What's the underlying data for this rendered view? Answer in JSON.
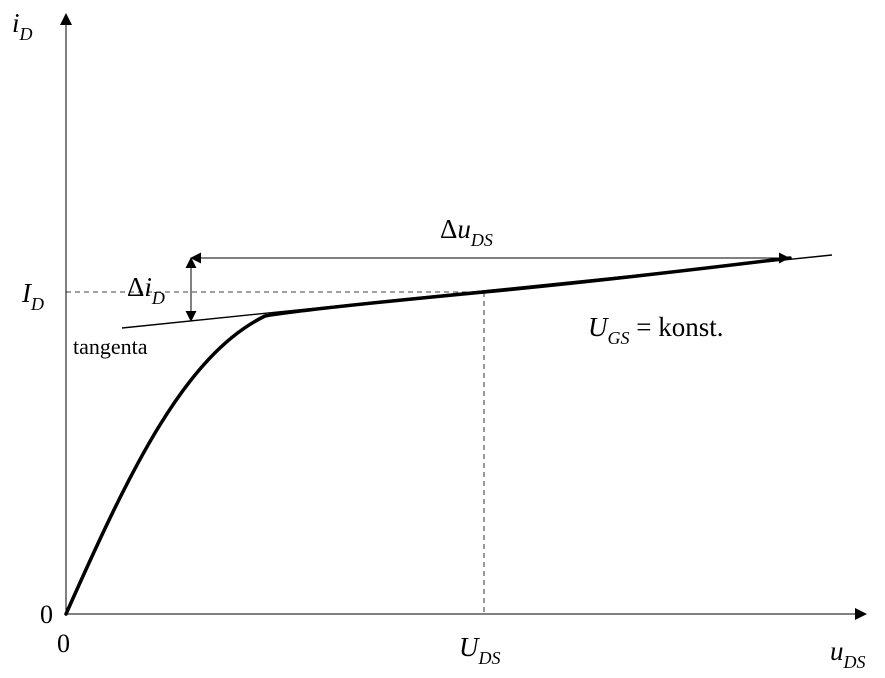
{
  "axes": {
    "y_symbol": "i",
    "y_sub": "D",
    "x_symbol": "u",
    "x_sub": "DS",
    "origin_x": "0",
    "origin_y": "0"
  },
  "markers": {
    "id_symbol": "I",
    "id_sub": "D",
    "uds_symbol": "U",
    "uds_sub": "DS"
  },
  "annotations": {
    "delta": "Δ",
    "delta_u_symbol": "u",
    "delta_u_sub": "DS",
    "delta_i_symbol": "i",
    "delta_i_sub": "D",
    "tangent_label": "tangenta",
    "ugs_symbol": "U",
    "ugs_sub": "GS",
    "ugs_rest": " = konst."
  },
  "colors": {
    "ink": "#000000",
    "dash": "#000000"
  }
}
